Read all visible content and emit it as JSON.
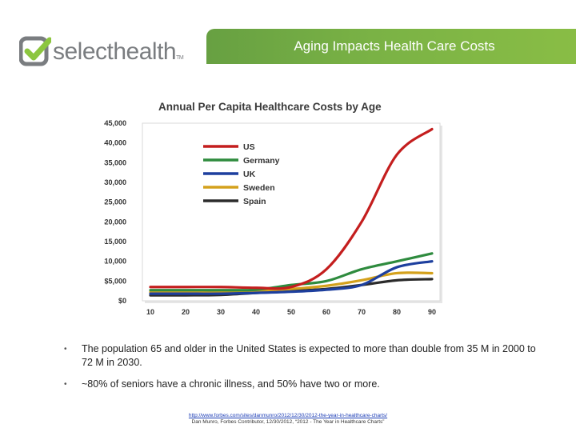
{
  "header": {
    "logo_text": "selecthealth",
    "logo_tm": "TM",
    "title": "Aging Impacts Health Care Costs"
  },
  "chart_data": {
    "type": "line",
    "title": "Annual Per Capita Healthcare Costs by Age",
    "xlabel": "",
    "ylabel": "",
    "x": [
      10,
      20,
      30,
      40,
      50,
      60,
      70,
      80,
      90
    ],
    "xlim": [
      10,
      90
    ],
    "ylim": [
      0,
      45000
    ],
    "yticks": [
      0,
      5000,
      10000,
      15000,
      20000,
      25000,
      30000,
      35000,
      40000,
      45000
    ],
    "ytick_labels": [
      "$0",
      "$5,000",
      "$10,000",
      "$15,000",
      "$20,000",
      "$25,000",
      "$30,000",
      "$35,000",
      "$40,000",
      "$45,000"
    ],
    "xtick_labels": [
      "10",
      "20",
      "30",
      "40",
      "50",
      "60",
      "70",
      "80",
      "90"
    ],
    "legend_position": "top-left",
    "series": [
      {
        "name": "US",
        "color": "#c41e1e",
        "values": [
          3500,
          3500,
          3500,
          3300,
          3500,
          8000,
          20000,
          37000,
          43500
        ]
      },
      {
        "name": "Germany",
        "color": "#2e8b3e",
        "values": [
          2700,
          2700,
          2700,
          2800,
          4000,
          5000,
          8000,
          10000,
          12000
        ]
      },
      {
        "name": "UK",
        "color": "#1d3f9e",
        "values": [
          1800,
          1800,
          1800,
          2000,
          2300,
          2800,
          4000,
          8500,
          10000
        ]
      },
      {
        "name": "Sweden",
        "color": "#d4a11c",
        "values": [
          2200,
          2200,
          2200,
          2500,
          3000,
          3800,
          5200,
          7000,
          7000
        ]
      },
      {
        "name": "Spain",
        "color": "#2b2b2b",
        "values": [
          1400,
          1400,
          1500,
          2000,
          2500,
          3000,
          4000,
          5200,
          5500
        ]
      }
    ]
  },
  "bullets": [
    "The population 65 and older in the United States is expected to more than double from 35 M in 2000 to 72 M in 2030.",
    "~80% of seniors have a chronic illness, and 50% have two or more."
  ],
  "bullet_symbol": "•",
  "source": {
    "url": "http://www.forbes.com/sites/danmunro/2012/12/30/2012-the-year-in-healthcare-charts/",
    "citation": "Dan Munro, Forbes Contributor, 12/30/2012, “2012 - The Year in Healthcare Charts”"
  }
}
